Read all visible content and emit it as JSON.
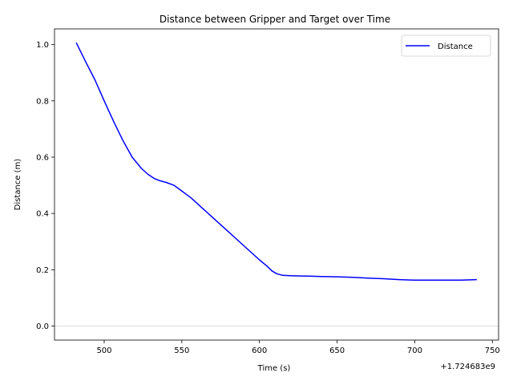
{
  "chart_data": {
    "type": "line",
    "title": "Distance between Gripper and Target over Time",
    "xlabel": "Time (s)",
    "ylabel": "Distance (m)",
    "x_offset_label": "+1.724683e9",
    "xlim": [
      468,
      754
    ],
    "ylim": [
      -0.05,
      1.056
    ],
    "x_ticks": [
      500,
      550,
      600,
      650,
      700,
      750
    ],
    "x_tick_labels": [
      "500",
      "550",
      "600",
      "650",
      "700",
      "750"
    ],
    "y_ticks": [
      0.0,
      0.2,
      0.4,
      0.6,
      0.8,
      1.0
    ],
    "y_tick_labels": [
      "0.0",
      "0.2",
      "0.4",
      "0.6",
      "0.8",
      "1.0"
    ],
    "grid": false,
    "horizontal_reference_line": 0.0,
    "legend_position": "top-right",
    "series": [
      {
        "name": "Distance",
        "color": "#0000ff",
        "x": [
          482,
          488,
          494,
          500,
          506,
          512,
          518,
          524,
          528,
          532,
          536,
          540,
          545,
          550,
          556,
          562,
          570,
          580,
          590,
          600,
          605,
          608,
          611,
          615,
          620,
          640,
          650,
          660,
          670,
          680,
          690,
          700,
          710,
          720,
          730,
          740
        ],
        "y": [
          1.007,
          0.94,
          0.875,
          0.8,
          0.728,
          0.66,
          0.6,
          0.56,
          0.54,
          0.525,
          0.516,
          0.51,
          0.5,
          0.48,
          0.455,
          0.425,
          0.385,
          0.335,
          0.285,
          0.235,
          0.212,
          0.196,
          0.186,
          0.18,
          0.179,
          0.176,
          0.175,
          0.173,
          0.17,
          0.168,
          0.165,
          0.163,
          0.163,
          0.163,
          0.163,
          0.165
        ]
      }
    ]
  }
}
